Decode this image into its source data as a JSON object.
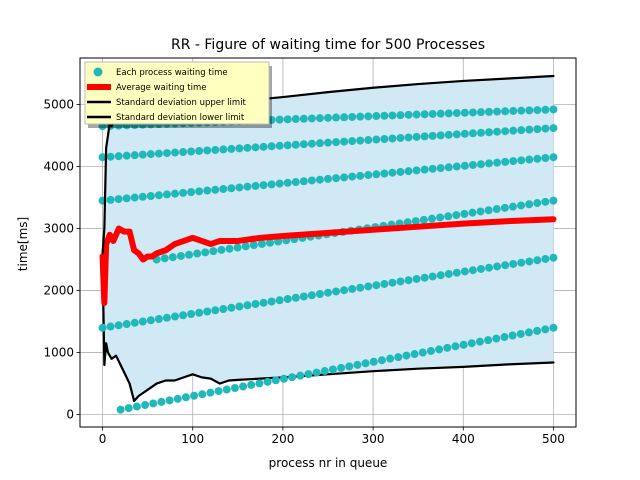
{
  "chart_data": {
    "type": "scatter",
    "title": "RR - Figure of waiting time for 500 Processes",
    "xlabel": "process nr in queue",
    "ylabel": "time[ms]",
    "xlim": [
      -25,
      525
    ],
    "ylim": [
      -200,
      5750
    ],
    "xticks": [
      0,
      100,
      200,
      300,
      400,
      500
    ],
    "yticks": [
      0,
      1000,
      2000,
      3000,
      4000,
      5000
    ],
    "grid": true,
    "legend_position": "top-left",
    "colors": {
      "points": "#17becf",
      "point_fill": "#20b8b8",
      "average": "#ff0000",
      "std": "#000000",
      "band": "#d0e9f5"
    },
    "legend": [
      "Each process waiting time",
      "Average waiting time",
      "Standard deviation upper limit",
      "Standard deviation lower limit"
    ],
    "series": [
      {
        "name": "Each process waiting time",
        "kind": "scatter",
        "bands": [
          {
            "x": [
              20,
              500
            ],
            "y": [
              80,
              1400
            ]
          },
          {
            "x": [
              0,
              500
            ],
            "y": [
              1400,
              2530
            ]
          },
          {
            "x": [
              60,
              500
            ],
            "y": [
              2500,
              3450
            ]
          },
          {
            "x": [
              0,
              500
            ],
            "y": [
              3450,
              4150
            ]
          },
          {
            "x": [
              0,
              500
            ],
            "y": [
              4150,
              4620
            ]
          },
          {
            "x": [
              0,
              500
            ],
            "y": [
              4650,
              4920
            ]
          }
        ]
      },
      {
        "name": "Average waiting time",
        "kind": "line",
        "x": [
          0,
          2,
          4,
          8,
          12,
          18,
          24,
          30,
          35,
          40,
          45,
          50,
          55,
          60,
          70,
          80,
          90,
          100,
          110,
          120,
          130,
          140,
          150,
          175,
          200,
          250,
          300,
          350,
          400,
          450,
          500
        ],
        "y": [
          2550,
          1800,
          2750,
          2900,
          2800,
          3000,
          2950,
          2950,
          2650,
          2600,
          2500,
          2550,
          2550,
          2600,
          2650,
          2750,
          2800,
          2850,
          2800,
          2750,
          2800,
          2800,
          2800,
          2850,
          2880,
          2930,
          2980,
          3030,
          3080,
          3120,
          3150
        ]
      },
      {
        "name": "Standard deviation upper limit",
        "kind": "line",
        "x": [
          0,
          2,
          4,
          6,
          8,
          10,
          15,
          20,
          30,
          40,
          60,
          80,
          100,
          150,
          200,
          250,
          300,
          350,
          400,
          450,
          500
        ],
        "y": [
          2600,
          3000,
          4300,
          4500,
          4700,
          4650,
          4800,
          4850,
          4950,
          4850,
          4850,
          4900,
          4950,
          5050,
          5120,
          5200,
          5270,
          5330,
          5380,
          5420,
          5460
        ]
      },
      {
        "name": "Standard deviation lower limit",
        "kind": "line",
        "x": [
          0,
          2,
          4,
          6,
          10,
          15,
          20,
          25,
          30,
          35,
          40,
          50,
          60,
          70,
          80,
          90,
          100,
          110,
          120,
          130,
          140,
          150,
          175,
          200,
          250,
          300,
          350,
          400,
          450,
          500
        ],
        "y": [
          2500,
          800,
          1150,
          1000,
          900,
          950,
          800,
          650,
          500,
          220,
          300,
          400,
          500,
          550,
          550,
          600,
          650,
          600,
          580,
          500,
          550,
          560,
          580,
          600,
          650,
          700,
          740,
          770,
          810,
          840
        ]
      }
    ]
  }
}
